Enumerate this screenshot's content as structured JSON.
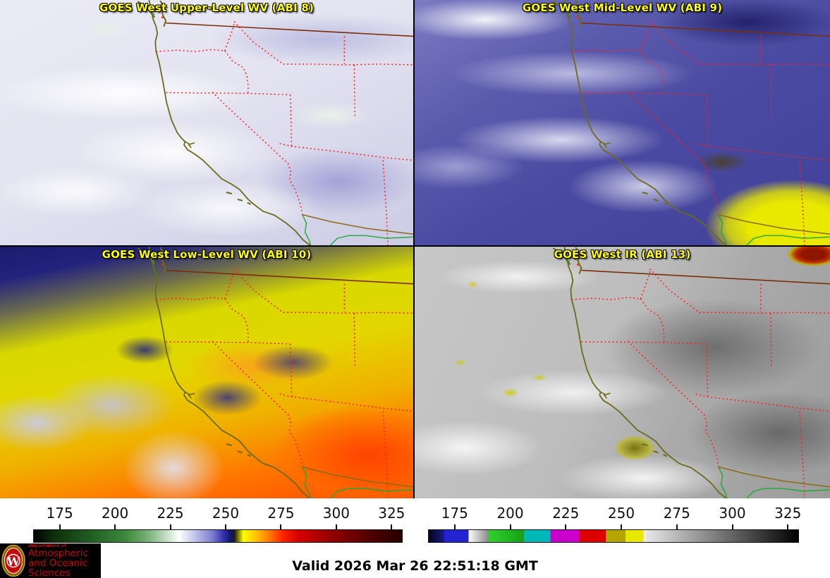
{
  "panels": [
    {
      "title": "GOES West Upper-Level WV (ABI 8)"
    },
    {
      "title": "GOES West Mid-Level WV (ABI 9)"
    },
    {
      "title": "GOES West Low-Level WV (ABI 10)"
    },
    {
      "title": "GOES West IR (ABI 13)"
    }
  ],
  "panel_title_color": "#ffff00",
  "colorbars": {
    "ticks": [
      175,
      200,
      225,
      250,
      275,
      300,
      325
    ],
    "wv": {
      "range": [
        163,
        330
      ],
      "stops": [
        [
          163,
          "#000000"
        ],
        [
          172,
          "#0e2e0e"
        ],
        [
          190,
          "#226022"
        ],
        [
          205,
          "#3f8a3f"
        ],
        [
          215,
          "#7ab27a"
        ],
        [
          224,
          "#cfe2cc"
        ],
        [
          229,
          "#ffffff"
        ],
        [
          236,
          "#c3c3e8"
        ],
        [
          244,
          "#7d7dd0"
        ],
        [
          249,
          "#3232b0"
        ],
        [
          252,
          "#16166e"
        ],
        [
          254,
          "#1c1c20"
        ],
        [
          256,
          "#8c8c00"
        ],
        [
          258,
          "#ffff00"
        ],
        [
          264,
          "#ffc000"
        ],
        [
          270,
          "#ff7700"
        ],
        [
          276,
          "#ff2200"
        ],
        [
          283,
          "#d60000"
        ],
        [
          295,
          "#a00000"
        ],
        [
          310,
          "#660000"
        ],
        [
          322,
          "#3c0000"
        ],
        [
          330,
          "#260000"
        ]
      ]
    },
    "ir": {
      "range": [
        163,
        330
      ],
      "segments": [
        [
          163,
          170,
          "#05051e",
          "#1a1a8c"
        ],
        [
          170,
          181,
          "#2323d2",
          "#2323d2"
        ],
        [
          181,
          190,
          "#ffffff",
          "#8a8a8a"
        ],
        [
          190,
          206,
          "#2ed22e",
          "#17a017"
        ],
        [
          206,
          218,
          "#00b8b8",
          "#00b8b8"
        ],
        [
          218,
          231,
          "#cc00cc",
          "#cc00cc"
        ],
        [
          231,
          243,
          "#dd0000",
          "#dd0000"
        ],
        [
          243,
          252,
          "#b5a500",
          "#b5a500"
        ],
        [
          252,
          260,
          "#e8e800",
          "#e8e800"
        ],
        [
          260,
          330,
          "#ebebeb",
          "#000000"
        ]
      ]
    }
  },
  "footer": {
    "valid_label": "Valid 2026 Mar 26 22:51:18 GMT",
    "logo": {
      "icon": "uw-crest-icon",
      "dept": "Department of",
      "line1": "Atmospheric",
      "line2": "and Oceanic Sciences",
      "text_color": "#c5050c",
      "bg": "#000000"
    }
  },
  "map": {
    "coastline_color": "#6b6b1a",
    "state_border_color": "#ff1e1e",
    "canada_border_color": "#7a2e08",
    "mexico_border_color": "#8b6b14",
    "river_color": "#1fa832"
  }
}
